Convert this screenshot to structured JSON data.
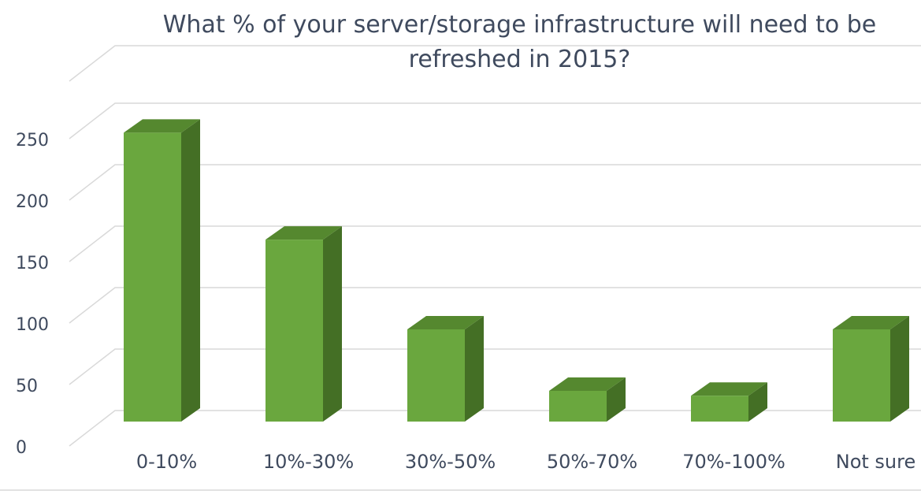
{
  "chart_data": {
    "type": "bar",
    "title_lines": [
      "What % of your server/storage infrastructure will need to be",
      "refreshed in 2015?"
    ],
    "categories": [
      "0-10%",
      "10%-30%",
      "30%-50%",
      "50%-70%",
      "70%-100%",
      "Not sure"
    ],
    "values": [
      235,
      148,
      75,
      25,
      21,
      75
    ],
    "y_ticks": [
      "0",
      "50",
      "100",
      "150",
      "200",
      "250"
    ],
    "ylim": [
      0,
      250
    ],
    "grid": true,
    "three_d": true,
    "colors": {
      "bar_front": "#6aa73e",
      "bar_side": "#446f25",
      "bar_top": "#55882f",
      "grid": "#d9d9d9",
      "text": "#3f4a5e"
    }
  }
}
